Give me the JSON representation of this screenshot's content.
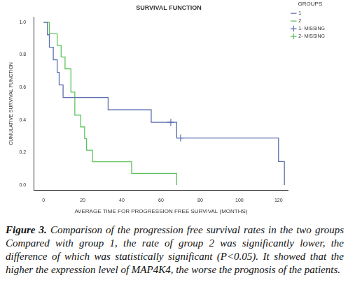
{
  "chart_data": {
    "type": "line",
    "title": "SURVIVAL FUNCTION",
    "x_label": "AVERAGE TIME FOR PROGRESSION FREE SURVIVAL (MONTHS)",
    "y_label": "CUMULATIVE SURVIVAL FUNCTION",
    "legend_title": "GROUPS",
    "legend": "right",
    "grid": false,
    "xlim": [
      -5,
      125
    ],
    "xticks": [
      0,
      20,
      40,
      60,
      80,
      100,
      120
    ],
    "ylim": [
      -0.03,
      1.03
    ],
    "yticks": [
      {
        "value": 0,
        "label": "0.0"
      },
      0.2,
      0.4,
      0.6,
      0.8,
      {
        "value": 1,
        "label": "1.0"
      }
    ],
    "series": [
      {
        "name": "1",
        "color": "#5b6fb0",
        "line_style": "step",
        "x": [
          0,
          2,
          3,
          5,
          7,
          8,
          10,
          33,
          55,
          68,
          120,
          123
        ],
        "values": [
          1,
          0.923,
          0.846,
          0.769,
          0.692,
          0.615,
          0.538,
          0.462,
          0.385,
          0.289,
          0.144,
          0
        ]
      },
      {
        "name": "2",
        "color": "#5cc35c",
        "line_style": "step",
        "x": [
          0,
          3,
          7,
          9,
          11,
          14,
          16,
          19,
          21,
          22,
          25,
          45,
          68
        ],
        "values": [
          1,
          0.929,
          0.857,
          0.786,
          0.714,
          0.571,
          0.429,
          0.357,
          0.286,
          0.214,
          0.143,
          0.071,
          0
        ]
      },
      {
        "name": "1- MISSING",
        "color": "#5b6fb0",
        "type": "scatter",
        "marker": "cross",
        "x": [
          65,
          70
        ],
        "values": [
          0.385,
          0.289
        ]
      },
      {
        "name": "2- MISSING",
        "color": "#5cc35c",
        "type": "scatter",
        "marker": "cross",
        "x": [],
        "values": []
      }
    ]
  },
  "caption": {
    "label": "Figure 3.",
    "text": "Comparison of the progression free survival rates in the two groups Compared with group 1, the rate of group 2 was significantly lower, the difference of which was statistically significant (P<0.05). It showed that the higher the expression level of MAP4K4, the worse the prognosis of the patients."
  }
}
